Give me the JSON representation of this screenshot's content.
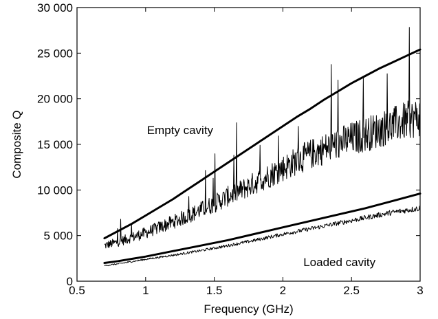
{
  "chart_data": {
    "type": "line",
    "xlabel": "Frequency (GHz)",
    "ylabel": "Composite Q",
    "xlim": [
      0.5,
      3
    ],
    "ylim": [
      0,
      30000
    ],
    "x_ticks": [
      0.5,
      1,
      1.5,
      2,
      2.5,
      3
    ],
    "x_tick_labels": [
      "0.5",
      "1",
      "1.5",
      "2",
      "2.5",
      "3"
    ],
    "y_ticks": [
      0,
      5000,
      10000,
      15000,
      20000,
      25000,
      30000
    ],
    "y_tick_labels": [
      "0",
      "5 000",
      "10 000",
      "15 000",
      "20 000",
      "25 000",
      "30 000"
    ],
    "grid": false,
    "legend": "none",
    "annotations": [
      {
        "text": "Empty cavity",
        "x": 1.26,
        "y": 16600
      },
      {
        "text": "Loaded cavity",
        "x": 2.45,
        "y": 2100
      }
    ],
    "series": [
      {
        "style": "thick",
        "x": [
          0.7,
          0.8,
          0.9,
          1.0,
          1.1,
          1.2,
          1.3,
          1.4,
          1.5,
          1.6,
          1.7,
          1.8,
          1.9,
          2.0,
          2.1,
          2.2,
          2.3,
          2.4,
          2.5,
          2.6,
          2.7,
          2.8,
          2.9,
          3.0
        ],
        "y": [
          4700,
          5500,
          6300,
          7200,
          8100,
          9000,
          10000,
          11000,
          12000,
          13000,
          14000,
          15000,
          16000,
          17000,
          18000,
          18900,
          19900,
          20800,
          21700,
          22500,
          23300,
          24000,
          24700,
          25400
        ]
      },
      {
        "style": "thin",
        "x": [
          0.7,
          0.8,
          0.9,
          1.0,
          1.1,
          1.2,
          1.3,
          1.4,
          1.5,
          1.6,
          1.7,
          1.8,
          1.9,
          2.0,
          2.1,
          2.2,
          2.3,
          2.4,
          2.5,
          2.6,
          2.7,
          2.8,
          2.9,
          3.0
        ],
        "y": [
          3900,
          4300,
          4800,
          5300,
          5900,
          6500,
          7100,
          7800,
          8500,
          9300,
          10000,
          10800,
          11600,
          12400,
          13200,
          13900,
          14500,
          15100,
          15600,
          16100,
          16600,
          17100,
          17600,
          18000
        ],
        "noise": "high"
      },
      {
        "style": "thick",
        "x": [
          0.7,
          0.8,
          0.9,
          1.0,
          1.2,
          1.4,
          1.6,
          1.8,
          2.0,
          2.2,
          2.4,
          2.6,
          2.8,
          3.0
        ],
        "y": [
          2000,
          2200,
          2450,
          2700,
          3300,
          3900,
          4500,
          5200,
          5900,
          6600,
          7300,
          8000,
          8800,
          9600
        ]
      },
      {
        "style": "thin",
        "x": [
          0.7,
          0.8,
          0.9,
          1.0,
          1.2,
          1.4,
          1.6,
          1.8,
          2.0,
          2.2,
          2.4,
          2.6,
          2.8,
          3.0
        ],
        "y": [
          1700,
          1900,
          2150,
          2400,
          2850,
          3350,
          3900,
          4500,
          5150,
          5750,
          6350,
          6950,
          7550,
          8000
        ],
        "noise": "low"
      }
    ]
  }
}
